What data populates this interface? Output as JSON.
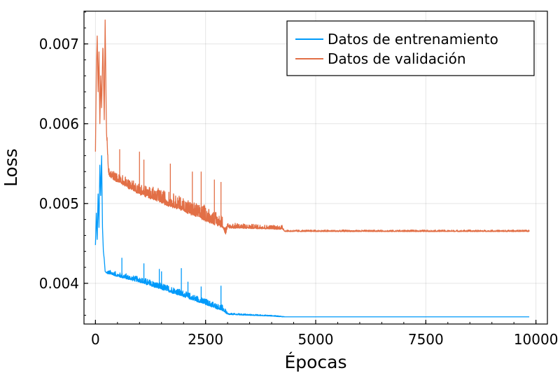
{
  "chart_data": {
    "type": "line",
    "xlabel": "Épocas",
    "ylabel": "Loss",
    "xlim": [
      -260,
      10260
    ],
    "ylim": [
      0.00349,
      0.00741
    ],
    "xticks": [
      0,
      2500,
      5000,
      7500,
      10000
    ],
    "xtick_labels": [
      "0",
      "2500",
      "5000",
      "7500",
      "10000"
    ],
    "yticks": [
      0.004,
      0.005,
      0.006,
      0.007
    ],
    "ytick_labels": [
      "0.004",
      "0.005",
      "0.006",
      "0.007"
    ],
    "grid": true,
    "legend_position": "top-right",
    "series": [
      {
        "name": "Datos de entrenamiento",
        "color": "#009AFA",
        "points": [
          [
            0,
            0.00448
          ],
          [
            20,
            0.00488
          ],
          [
            40,
            0.00455
          ],
          [
            60,
            0.00512
          ],
          [
            80,
            0.0047
          ],
          [
            100,
            0.00548
          ],
          [
            120,
            0.0051
          ],
          [
            140,
            0.0056
          ],
          [
            160,
            0.0047
          ],
          [
            180,
            0.0044
          ],
          [
            200,
            0.0043
          ],
          [
            220,
            0.00415
          ],
          [
            250,
            0.00413
          ],
          [
            500,
            0.00409
          ],
          [
            1000,
            0.00402
          ],
          [
            1500,
            0.00393
          ],
          [
            2000,
            0.00384
          ],
          [
            2500,
            0.00374
          ],
          [
            2900,
            0.00366
          ],
          [
            3000,
            0.00361
          ],
          [
            3500,
            0.0036
          ],
          [
            4000,
            0.00359
          ],
          [
            4250,
            0.00358
          ],
          [
            5000,
            0.00358
          ],
          [
            7500,
            0.00358
          ],
          [
            9850,
            0.00358
          ]
        ],
        "noise": [
          [
            250,
            5e-05
          ],
          [
            1500,
            8e-05
          ],
          [
            2900,
            7e-05
          ],
          [
            3000,
            2e-05
          ],
          [
            4250,
            1e-05
          ],
          [
            4300,
            0.0
          ],
          [
            9850,
            0.0
          ]
        ],
        "spikes": [
          [
            600,
            0.00432
          ],
          [
            1100,
            0.00425
          ],
          [
            1450,
            0.00418
          ],
          [
            1500,
            0.00415
          ],
          [
            1950,
            0.00419
          ],
          [
            2100,
            0.00402
          ],
          [
            2400,
            0.00396
          ],
          [
            2850,
            0.00397
          ]
        ]
      },
      {
        "name": "Datos de validación",
        "color": "#E26F46",
        "points": [
          [
            0,
            0.00565
          ],
          [
            20,
            0.00665
          ],
          [
            40,
            0.0071
          ],
          [
            60,
            0.0064
          ],
          [
            80,
            0.0069
          ],
          [
            100,
            0.006
          ],
          [
            120,
            0.0066
          ],
          [
            140,
            0.0062
          ],
          [
            170,
            0.007
          ],
          [
            200,
            0.00605
          ],
          [
            220,
            0.0073
          ],
          [
            250,
            0.0059
          ],
          [
            300,
            0.00535
          ],
          [
            500,
            0.00528
          ],
          [
            1000,
            0.00513
          ],
          [
            1500,
            0.00502
          ],
          [
            2000,
            0.00492
          ],
          [
            2500,
            0.0048
          ],
          [
            2900,
            0.00471
          ],
          [
            2950,
            0.00462
          ],
          [
            3000,
            0.0047
          ],
          [
            4250,
            0.00468
          ],
          [
            4300,
            0.00465
          ],
          [
            7500,
            0.00465
          ],
          [
            9850,
            0.00465
          ]
        ],
        "noise": [
          [
            300,
            0.0001
          ],
          [
            1500,
            0.00016
          ],
          [
            2500,
            0.00018
          ],
          [
            2900,
            0.00014
          ],
          [
            3000,
            6e-05
          ],
          [
            4250,
            5e-05
          ],
          [
            4300,
            2e-05
          ],
          [
            9850,
            2e-05
          ]
        ],
        "spikes": [
          [
            550,
            0.00568
          ],
          [
            1000,
            0.00565
          ],
          [
            1100,
            0.00555
          ],
          [
            1700,
            0.0055
          ],
          [
            2200,
            0.0054
          ],
          [
            2400,
            0.0054
          ],
          [
            2700,
            0.0053
          ],
          [
            2850,
            0.00527
          ]
        ]
      }
    ]
  }
}
